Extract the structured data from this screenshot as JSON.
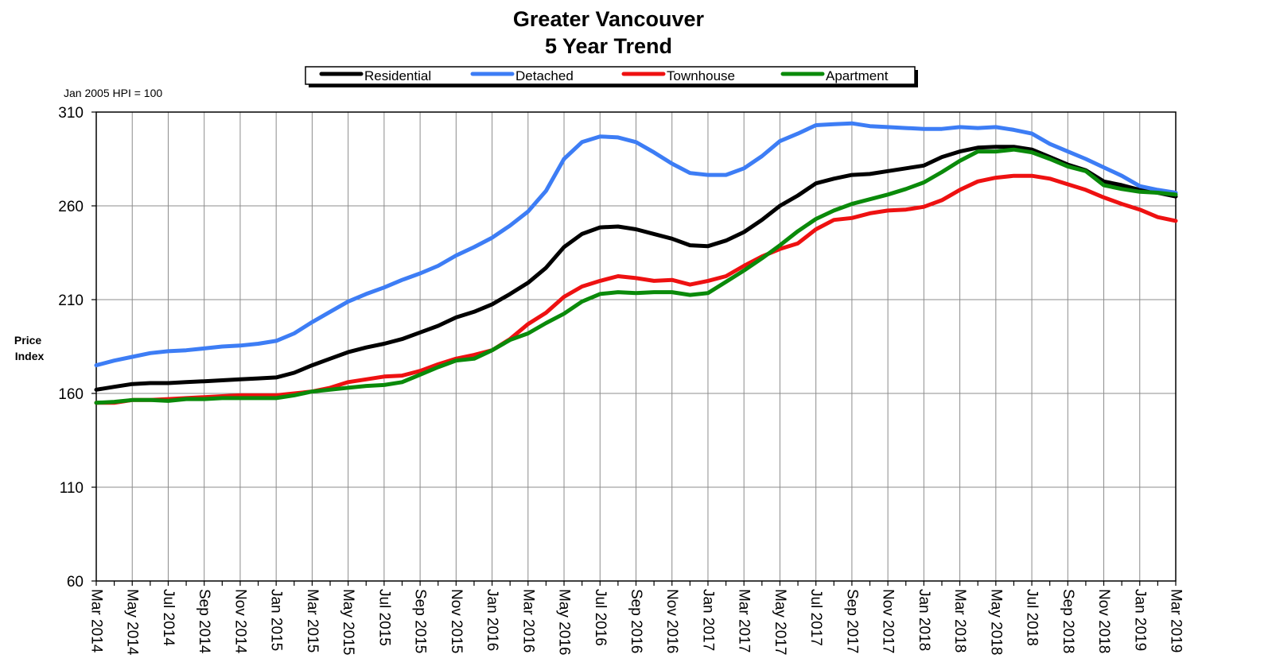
{
  "chart_data": {
    "type": "line",
    "title": "Greater Vancouver",
    "subtitle": "5 Year Trend",
    "note": "Jan 2005 HPI = 100",
    "ylabel_line1": "Price",
    "ylabel_line2": "Index",
    "xlabel": "",
    "ylim": [
      60,
      310
    ],
    "yticks": [
      60,
      110,
      160,
      210,
      260,
      310
    ],
    "grid": true,
    "legend_position": "top",
    "x": [
      "Mar 2014",
      "Apr 2014",
      "May 2014",
      "Jun 2014",
      "Jul 2014",
      "Aug 2014",
      "Sep 2014",
      "Oct 2014",
      "Nov 2014",
      "Dec 2014",
      "Jan 2015",
      "Feb 2015",
      "Mar 2015",
      "Apr 2015",
      "May 2015",
      "Jun 2015",
      "Jul 2015",
      "Aug 2015",
      "Sep 2015",
      "Oct 2015",
      "Nov 2015",
      "Dec 2015",
      "Jan 2016",
      "Feb 2016",
      "Mar 2016",
      "Apr 2016",
      "May 2016",
      "Jun 2016",
      "Jul 2016",
      "Aug 2016",
      "Sep 2016",
      "Oct 2016",
      "Nov 2016",
      "Dec 2016",
      "Jan 2017",
      "Feb 2017",
      "Mar 2017",
      "Apr 2017",
      "May 2017",
      "Jun 2017",
      "Jul 2017",
      "Aug 2017",
      "Sep 2017",
      "Oct 2017",
      "Nov 2017",
      "Dec 2017",
      "Jan 2018",
      "Feb 2018",
      "Mar 2018",
      "Apr 2018",
      "May 2018",
      "Jun 2018",
      "Jul 2018",
      "Aug 2018",
      "Sep 2018",
      "Oct 2018",
      "Nov 2018",
      "Dec 2018",
      "Jan 2019",
      "Feb 2019",
      "Mar 2019"
    ],
    "xtick_labels": [
      "Mar 2014",
      "May 2014",
      "Jul 2014",
      "Sep 2014",
      "Nov 2014",
      "Jan 2015",
      "Mar 2015",
      "May 2015",
      "Jul 2015",
      "Sep 2015",
      "Nov 2015",
      "Jan 2016",
      "Mar 2016",
      "May 2016",
      "Jul 2016",
      "Sep 2016",
      "Nov 2016",
      "Jan 2017",
      "Mar 2017",
      "May 2017",
      "Jul 2017",
      "Sep 2017",
      "Nov 2017",
      "Jan 2018",
      "Mar 2018",
      "May 2018",
      "Jul 2018",
      "Sep 2018",
      "Nov 2018",
      "Jan 2019",
      "Mar 2019"
    ],
    "series": [
      {
        "name": "Residential",
        "color": "#000000",
        "values": [
          162,
          163.5,
          165,
          165.5,
          165.5,
          166,
          166.5,
          167,
          167.5,
          168,
          168.5,
          171,
          175,
          178.5,
          182,
          184.5,
          186.5,
          189,
          192.5,
          196,
          200.5,
          203.5,
          207.5,
          213,
          219,
          227,
          238,
          245,
          248.5,
          249,
          247.5,
          245,
          242.5,
          239,
          238.5,
          241.5,
          246,
          252.5,
          260,
          265.5,
          272,
          274.5,
          276.5,
          277,
          278.5,
          280,
          281.5,
          286,
          289,
          291,
          291.5,
          291.5,
          290,
          286,
          282,
          279,
          273,
          271,
          268.5,
          267,
          265
        ]
      },
      {
        "name": "Detached",
        "color": "#3d7df5",
        "values": [
          175,
          177.5,
          179.5,
          181.5,
          182.5,
          183,
          184,
          185,
          185.5,
          186.5,
          188,
          192,
          198,
          203.5,
          209,
          213,
          216.5,
          220.5,
          224,
          228,
          233.5,
          238,
          243,
          249.5,
          257,
          268,
          285,
          294,
          297,
          296.5,
          294,
          288.5,
          282.5,
          277.5,
          276.5,
          276.5,
          280,
          286.5,
          294.5,
          298.5,
          303,
          303.5,
          304,
          302.5,
          302,
          301.5,
          301,
          301,
          302,
          301.5,
          302,
          300.5,
          298.5,
          293,
          289,
          285,
          280.5,
          276,
          270.5,
          268.5,
          267
        ]
      },
      {
        "name": "Townhouse",
        "color": "#ee1111",
        "values": [
          155,
          155,
          156.5,
          156.5,
          157,
          157.5,
          158,
          158.5,
          159,
          159,
          159,
          160,
          161,
          163,
          166,
          167.5,
          169,
          169.5,
          172,
          175.5,
          178.5,
          180.5,
          183,
          189,
          197,
          203,
          211.5,
          217,
          220,
          222.5,
          221.5,
          220,
          220.5,
          218,
          220,
          222.5,
          228,
          233,
          237,
          240,
          247.5,
          252.5,
          253.5,
          256,
          257.5,
          258,
          259.5,
          263,
          268.5,
          273,
          275,
          276,
          276,
          274.5,
          271.5,
          268.5,
          264.5,
          261,
          258,
          254,
          252
        ]
      },
      {
        "name": "Apartment",
        "color": "#0a8a0a",
        "values": [
          155,
          155.5,
          156.5,
          156.5,
          156,
          157,
          157,
          157.5,
          157.5,
          157.5,
          157.5,
          159,
          161,
          162,
          163,
          164,
          164.5,
          166,
          170,
          174,
          177.5,
          178.5,
          183,
          188.5,
          192,
          197.5,
          202.5,
          209,
          213,
          214,
          213.5,
          214,
          214,
          212.5,
          213.5,
          219.5,
          225.5,
          232,
          239,
          246.5,
          253,
          257.5,
          261,
          263.5,
          266,
          269,
          272.5,
          278,
          284,
          289,
          289,
          290,
          288.5,
          285,
          281,
          278.5,
          271,
          269,
          267.5,
          267,
          266
        ]
      }
    ]
  }
}
